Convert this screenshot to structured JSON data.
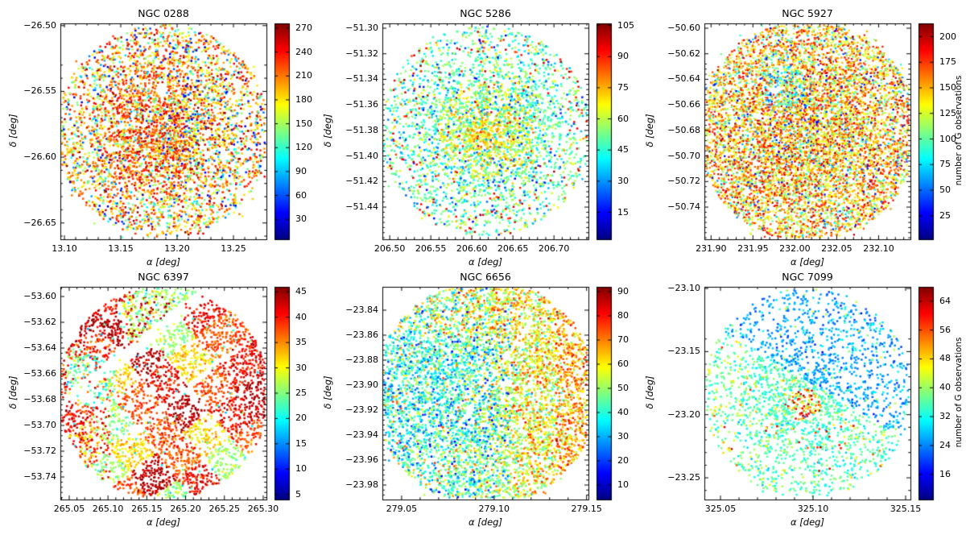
{
  "figure": {
    "kind": "multi-panel-scatter",
    "rows": 2,
    "cols": 3,
    "background": "#ffffff",
    "colormap": "jet",
    "colormap_min_color": "#00007f",
    "colormap_max_color": "#7f0000",
    "colorbar_label": "number of G observations"
  },
  "chart_data": [
    {
      "type": "scatter",
      "id": "ngc0288",
      "title": "NGC 0288",
      "xlabel": "α [deg]",
      "ylabel": "δ [deg]",
      "xlim": [
        13.0964,
        13.2793
      ],
      "ylim": [
        -26.6624,
        -26.4983
      ],
      "xticks": [
        13.1,
        13.15,
        13.2,
        13.25
      ],
      "yticks": [
        -26.5,
        -26.55,
        -26.6,
        -26.65
      ],
      "cbar": {
        "min": 5,
        "max": 276,
        "ticks": [
          30,
          60,
          90,
          120,
          150,
          180,
          210,
          240,
          270
        ],
        "label": null
      },
      "points": {
        "profile": "p1",
        "count": 4500,
        "seed": 11,
        "radius_px": 132,
        "rmax": 1.0,
        "core_frac": 0.4,
        "core_sigma": 0.4,
        "core_x": 0,
        "core_y": 0,
        "holes": [
          {
            "x": -0.02,
            "y": 0.4,
            "r": 0.055,
            "drop": 0.9
          }
        ],
        "rays": [],
        "stripes": []
      }
    },
    {
      "type": "scatter",
      "id": "ngc5286",
      "title": "NGC 5286",
      "xlabel": "α [deg]",
      "ylabel": "δ [deg]",
      "xlim": [
        206.491,
        206.742
      ],
      "ylim": [
        -51.4652,
        -51.2962
      ],
      "xticks": [
        206.5,
        206.55,
        206.6,
        206.65,
        206.7
      ],
      "yticks": [
        -51.3,
        -51.32,
        -51.34,
        -51.36,
        -51.38,
        -51.4,
        -51.42,
        -51.44
      ],
      "cbar": {
        "min": 2,
        "max": 106,
        "ticks": [
          15,
          30,
          45,
          60,
          75,
          90,
          105
        ],
        "label": null
      },
      "points": {
        "profile": "p2",
        "count": 3600,
        "seed": 23,
        "radius_px": 131,
        "rmax": 1.0,
        "core_frac": 0.45,
        "core_sigma": 0.33,
        "core_x": 0,
        "core_y": 0,
        "holes": [],
        "rays": [
          {
            "ang": 65,
            "rmin": 0.1,
            "rmax": 0.6,
            "hw": 2.8,
            "drop": 0.65
          },
          {
            "ang": 115,
            "rmin": 0.1,
            "rmax": 0.6,
            "hw": 2.8,
            "drop": 0.65
          },
          {
            "ang": 245,
            "rmin": 0.15,
            "rmax": 0.5,
            "hw": 2.4,
            "drop": 0.6
          }
        ],
        "stripes": []
      }
    },
    {
      "type": "scatter",
      "id": "ngc5927",
      "title": "NGC 5927",
      "xlabel": "α [deg]",
      "ylabel": "δ [deg]",
      "xlim": [
        231.892,
        232.138
      ],
      "ylim": [
        -50.7652,
        -50.5962
      ],
      "xticks": [
        231.9,
        231.95,
        232.0,
        232.05,
        232.1
      ],
      "yticks": [
        -50.6,
        -50.62,
        -50.64,
        -50.66,
        -50.68,
        -50.7,
        -50.72,
        -50.74
      ],
      "cbar": {
        "min": 2,
        "max": 213,
        "ticks": [
          25,
          50,
          75,
          100,
          125,
          150,
          175,
          200
        ],
        "label": "number of G observations"
      },
      "points": {
        "profile": "p3",
        "count": 8000,
        "seed": 37,
        "radius_px": 134,
        "rmax": 1.02,
        "core_frac": 0.25,
        "core_sigma": 0.45,
        "core_x": 0,
        "core_y": 0,
        "holes": [
          {
            "x": -0.29,
            "y": 0.4,
            "r": 0.05,
            "drop": 0.92
          },
          {
            "x": -0.46,
            "y": 0.15,
            "r": 0.04,
            "drop": 0.92
          }
        ],
        "rays": [],
        "stripes": []
      }
    },
    {
      "type": "scatter",
      "id": "ngc6397",
      "title": "NGC 6397",
      "xlabel": "α [deg]",
      "ylabel": "δ [deg]",
      "xlim": [
        265.0386,
        265.3042
      ],
      "ylim": [
        -53.7575,
        -53.5925
      ],
      "xticks": [
        265.05,
        265.1,
        265.15,
        265.2,
        265.25,
        265.3
      ],
      "yticks": [
        -53.6,
        -53.62,
        -53.64,
        -53.66,
        -53.68,
        -53.7,
        -53.72,
        -53.74
      ],
      "cbar": {
        "min": 4,
        "max": 46,
        "ticks": [
          5,
          10,
          15,
          20,
          25,
          30,
          35,
          40,
          45
        ],
        "label": null
      },
      "points": {
        "profile": "p4",
        "count": 4200,
        "seed": 49,
        "radius_px": 132,
        "rmax": 1.0,
        "core_frac": 0.0,
        "core_sigma": 0.4,
        "core_x": 0,
        "core_y": 0,
        "holes": [],
        "rays": [],
        "stripes": [
          {
            "ang": 38,
            "w": 0.5,
            "hw": 0.06,
            "umin": -1.2,
            "umax": 1.2,
            "drop": 0.92
          },
          {
            "ang": 38,
            "w": -0.1,
            "hw": 0.028,
            "umin": -0.5,
            "umax": 1.2,
            "drop": 0.75
          },
          {
            "ang": 128,
            "w": -0.18,
            "hw": 0.025,
            "umin": -1.2,
            "umax": 0.0,
            "drop": 0.8
          },
          {
            "ang": 128,
            "w": 0.55,
            "hw": 0.02,
            "umin": 0.2,
            "umax": 1.2,
            "drop": 0.7
          }
        ]
      }
    },
    {
      "type": "scatter",
      "id": "ngc6656",
      "title": "NGC 6656",
      "xlabel": "α [deg]",
      "ylabel": "δ [deg]",
      "xlim": [
        279.0396,
        279.151
      ],
      "ylim": [
        -23.9916,
        -23.8213
      ],
      "xticks": [
        279.05,
        279.1,
        279.15
      ],
      "yticks": [
        -23.84,
        -23.86,
        -23.88,
        -23.9,
        -23.92,
        -23.94,
        -23.96,
        -23.98
      ],
      "cbar": {
        "min": 4,
        "max": 92,
        "ticks": [
          10,
          20,
          30,
          40,
          50,
          60,
          70,
          80,
          90
        ],
        "label": null
      },
      "points": {
        "profile": "p5",
        "count": 6200,
        "seed": 61,
        "radius_px": 134,
        "rmax": 1.04,
        "core_frac": 0.15,
        "core_sigma": 0.5,
        "core_x": 0,
        "core_y": 0,
        "holes": [],
        "rays": [],
        "stripes": [
          {
            "ang": 55,
            "w": 0.03,
            "hw": 0.02,
            "umin": -0.8,
            "umax": 0.8,
            "drop": 0.85
          },
          {
            "ang": 55,
            "w": 0.13,
            "hw": 0.011,
            "umin": -0.55,
            "umax": 0.35,
            "drop": 0.7
          },
          {
            "ang": 55,
            "w": -0.42,
            "hw": 0.015,
            "umin": -0.6,
            "umax": 0.2,
            "drop": 0.6
          }
        ]
      }
    },
    {
      "type": "scatter",
      "id": "ngc7099",
      "title": "NGC 7099",
      "xlabel": "α [deg]",
      "ylabel": "δ [deg]",
      "xlim": [
        325.0413,
        325.1526
      ],
      "ylim": [
        -23.2672,
        -23.0987
      ],
      "xticks": [
        325.05,
        325.1,
        325.15
      ],
      "yticks": [
        -23.1,
        -23.15,
        -23.2,
        -23.25
      ],
      "cbar": {
        "min": 9,
        "max": 68,
        "ticks": [
          16,
          24,
          32,
          40,
          48,
          56,
          64
        ],
        "label": "number of G observations"
      },
      "points": {
        "profile": "p6",
        "count": 2450,
        "seed": 77,
        "radius_px": 130,
        "rmax": 1.0,
        "core_frac": 0.28,
        "core_sigma": 0.3,
        "core_x": -0.06,
        "core_y": -0.05,
        "holes": [],
        "rays": [
          {
            "ang": 80,
            "rmin": 0.14,
            "rmax": 1.1,
            "hw": 2.4,
            "drop": 0.85
          },
          {
            "ang": 118,
            "rmin": 0.16,
            "rmax": 1.1,
            "hw": 2.2,
            "drop": 0.8
          },
          {
            "ang": 22,
            "rmin": 0.16,
            "rmax": 1.1,
            "hw": 2.2,
            "drop": 0.8
          },
          {
            "ang": 255,
            "rmin": 0.2,
            "rmax": 1.1,
            "hw": 2.0,
            "drop": 0.7
          }
        ],
        "stripes": []
      }
    }
  ]
}
